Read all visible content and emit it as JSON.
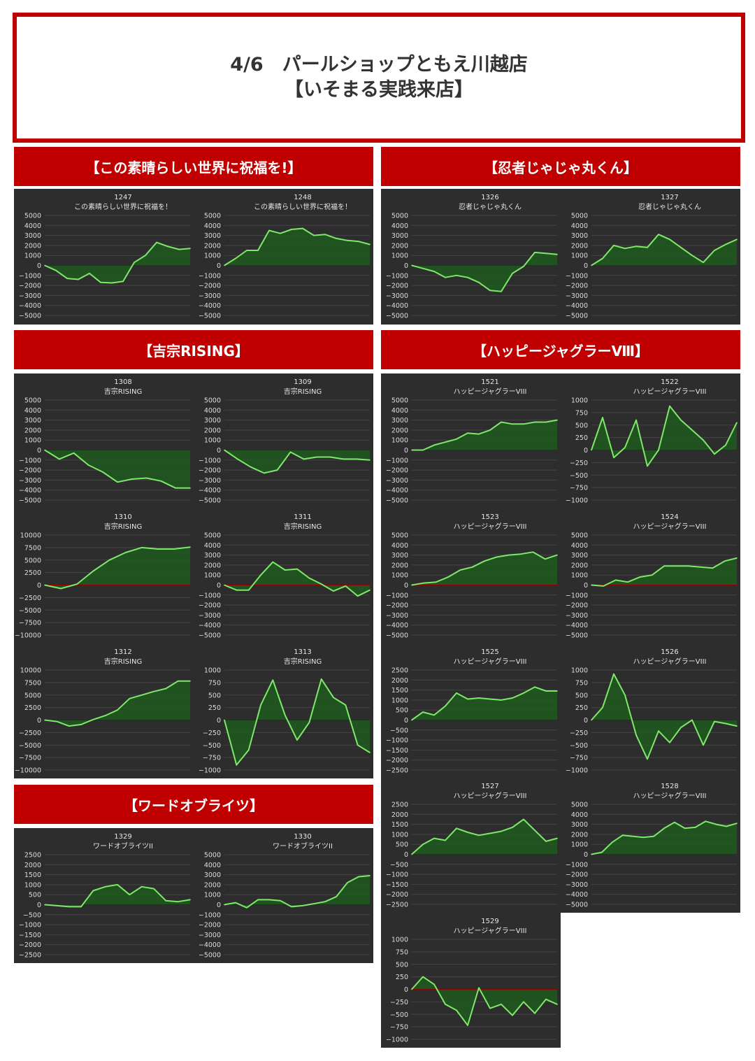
{
  "header": {
    "line1": "4/6　パールショップともえ川越店",
    "line2": "【いそまる実践来店】"
  },
  "banners": [
    {
      "id": "konosuba",
      "label": "【この素晴らしい世界に祝福を!】"
    },
    {
      "id": "ninja",
      "label": "【忍者じゃじゃ丸くん】"
    },
    {
      "id": "yoshimune",
      "label": "【吉宗RISING】"
    },
    {
      "id": "happy",
      "label": "【ハッピージャグラーⅧ】"
    },
    {
      "id": "word",
      "label": "【ワードオブライツ】"
    }
  ],
  "colors": {
    "accent": "#c00000",
    "panel": "#2d2d2d",
    "line": "#7ee86a",
    "fill": "#1f5a1f",
    "zero": "#8b0000"
  },
  "chart_data": [
    {
      "type": "area",
      "number": "1247",
      "title": "この素晴らしい世界に祝福を！",
      "ylim": [
        -5000,
        5000
      ],
      "yticks": [
        5000,
        4000,
        3000,
        2000,
        1000,
        0,
        -1000,
        -2000,
        -3000,
        -4000,
        -5000
      ],
      "y": [
        0,
        -500,
        -1300,
        -1400,
        -800,
        -1700,
        -1750,
        -1600,
        300,
        1000,
        2300,
        1900,
        1600,
        1700
      ]
    },
    {
      "type": "area",
      "number": "1248",
      "title": "この素晴らしい世界に祝福を！",
      "ylim": [
        -5000,
        5000
      ],
      "yticks": [
        5000,
        4000,
        3000,
        2000,
        1000,
        0,
        -1000,
        -2000,
        -3000,
        -4000,
        -5000
      ],
      "y": [
        0,
        700,
        1500,
        1500,
        3500,
        3200,
        3600,
        3700,
        3000,
        3100,
        2700,
        2500,
        2400,
        2100
      ]
    },
    {
      "type": "area",
      "number": "1326",
      "title": "忍者じゃじゃ丸くん",
      "ylim": [
        -5000,
        5000
      ],
      "yticks": [
        5000,
        4000,
        3000,
        2000,
        1000,
        0,
        -1000,
        -2000,
        -3000,
        -4000,
        -5000
      ],
      "y": [
        0,
        -300,
        -600,
        -1200,
        -1000,
        -1200,
        -1700,
        -2500,
        -2600,
        -800,
        -100,
        1300,
        1200,
        1100
      ]
    },
    {
      "type": "area",
      "number": "1327",
      "title": "忍者じゃじゃ丸くん",
      "ylim": [
        -5000,
        5000
      ],
      "yticks": [
        5000,
        4000,
        3000,
        2000,
        1000,
        0,
        -1000,
        -2000,
        -3000,
        -4000,
        -5000
      ],
      "y": [
        0,
        700,
        2000,
        1700,
        1900,
        1800,
        3100,
        2600,
        1800,
        1000,
        300,
        1500,
        2100,
        2600
      ]
    },
    {
      "type": "area",
      "number": "1308",
      "title": "吉宗RISING",
      "ylim": [
        -5000,
        5000
      ],
      "yticks": [
        5000,
        4000,
        3000,
        2000,
        1000,
        0,
        -1000,
        -2000,
        -3000,
        -4000,
        -5000
      ],
      "y": [
        0,
        -900,
        -300,
        -1500,
        -2200,
        -3200,
        -2900,
        -2800,
        -3100,
        -3800,
        -3800
      ]
    },
    {
      "type": "area",
      "number": "1309",
      "title": "吉宗RISING",
      "ylim": [
        -5000,
        5000
      ],
      "yticks": [
        5000,
        4000,
        3000,
        2000,
        1000,
        0,
        -1000,
        -2000,
        -3000,
        -4000,
        -5000
      ],
      "y": [
        0,
        -900,
        -1700,
        -2300,
        -2000,
        -200,
        -900,
        -700,
        -700,
        -900,
        -900,
        -1000
      ]
    },
    {
      "type": "area",
      "number": "1310",
      "title": "吉宗RISING",
      "ylim": [
        -10000,
        10000
      ],
      "yticks": [
        10000,
        7500,
        5000,
        2500,
        0,
        -2500,
        -5000,
        -7500,
        -10000
      ],
      "y": [
        0,
        -700,
        200,
        2800,
        5000,
        6500,
        7500,
        7200,
        7200,
        7600
      ]
    },
    {
      "type": "area",
      "number": "1311",
      "title": "吉宗RISING",
      "ylim": [
        -5000,
        5000
      ],
      "yticks": [
        5000,
        4000,
        3000,
        2000,
        1000,
        0,
        -1000,
        -2000,
        -3000,
        -4000,
        -5000
      ],
      "y": [
        0,
        -500,
        -500,
        1000,
        2300,
        1500,
        1600,
        700,
        100,
        -600,
        -100,
        -1100,
        -500
      ]
    },
    {
      "type": "area",
      "number": "1312",
      "title": "吉宗RISING",
      "ylim": [
        -10000,
        10000
      ],
      "yticks": [
        10000,
        7500,
        5000,
        2500,
        0,
        -2500,
        -5000,
        -7500,
        -10000
      ],
      "y": [
        0,
        -300,
        -1200,
        -900,
        100,
        900,
        2000,
        4300,
        5000,
        5700,
        6300,
        7800,
        7800
      ]
    },
    {
      "type": "area",
      "number": "1313",
      "title": "吉宗RISING",
      "ylim": [
        -1000,
        1000
      ],
      "yticks": [
        1000,
        750,
        500,
        250,
        0,
        -250,
        -500,
        -750,
        -1000
      ],
      "y": [
        0,
        -900,
        -600,
        300,
        800,
        100,
        -400,
        -50,
        820,
        450,
        300,
        -500,
        -650
      ]
    },
    {
      "type": "area",
      "number": "1329",
      "title": "ワードオブライツII",
      "ylim": [
        -2500,
        2500
      ],
      "yticks": [
        2500,
        2000,
        1500,
        1000,
        500,
        0,
        -500,
        -1000,
        -1500,
        -2000,
        -2500
      ],
      "y": [
        0,
        -50,
        -100,
        -100,
        700,
        900,
        1000,
        500,
        900,
        800,
        200,
        150,
        250
      ]
    },
    {
      "type": "area",
      "number": "1330",
      "title": "ワードオブライツII",
      "ylim": [
        -5000,
        5000
      ],
      "yticks": [
        5000,
        4000,
        3000,
        2000,
        1000,
        0,
        -1000,
        -2000,
        -3000,
        -4000,
        -5000
      ],
      "y": [
        0,
        200,
        -300,
        500,
        500,
        400,
        -200,
        -100,
        100,
        300,
        800,
        2200,
        2800,
        2900
      ]
    },
    {
      "type": "area",
      "number": "1521",
      "title": "ハッピージャグラーVIII",
      "ylim": [
        -5000,
        5000
      ],
      "yticks": [
        5000,
        4000,
        3000,
        2000,
        1000,
        0,
        -1000,
        -2000,
        -3000,
        -4000,
        -5000
      ],
      "y": [
        0,
        0,
        500,
        800,
        1100,
        1700,
        1600,
        2000,
        2800,
        2600,
        2600,
        2800,
        2800,
        3000
      ]
    },
    {
      "type": "area",
      "number": "1522",
      "title": "ハッピージャグラーVIII",
      "ylim": [
        -1000,
        1000
      ],
      "yticks": [
        1000,
        750,
        500,
        250,
        0,
        -250,
        -500,
        -750,
        -1000
      ],
      "y": [
        0,
        650,
        -150,
        50,
        600,
        -320,
        0,
        880,
        600,
        400,
        200,
        -80,
        100,
        550
      ]
    },
    {
      "type": "area",
      "number": "1523",
      "title": "ハッピージャグラーVIII",
      "ylim": [
        -5000,
        5000
      ],
      "yticks": [
        5000,
        4000,
        3000,
        2000,
        1000,
        0,
        -1000,
        -2000,
        -3000,
        -4000,
        -5000
      ],
      "y": [
        0,
        200,
        300,
        800,
        1500,
        1800,
        2400,
        2800,
        3000,
        3100,
        3300,
        2600,
        3000
      ]
    },
    {
      "type": "area",
      "number": "1524",
      "title": "ハッピージャグラーVIII",
      "ylim": [
        -5000,
        5000
      ],
      "yticks": [
        5000,
        4000,
        3000,
        2000,
        1000,
        0,
        -1000,
        -2000,
        -3000,
        -4000,
        -5000
      ],
      "y": [
        0,
        -100,
        500,
        300,
        800,
        1000,
        1900,
        1900,
        1900,
        1800,
        1700,
        2400,
        2700
      ]
    },
    {
      "type": "area",
      "number": "1525",
      "title": "ハッピージャグラーVIII",
      "ylim": [
        -2500,
        2500
      ],
      "yticks": [
        2500,
        2000,
        1500,
        1000,
        500,
        0,
        -500,
        -1000,
        -1500,
        -2000,
        -2500
      ],
      "y": [
        0,
        400,
        250,
        700,
        1350,
        1050,
        1100,
        1050,
        1000,
        1100,
        1350,
        1650,
        1450,
        1450
      ]
    },
    {
      "type": "area",
      "number": "1526",
      "title": "ハッピージャグラーVIII",
      "ylim": [
        -1000,
        1000
      ],
      "yticks": [
        1000,
        750,
        500,
        250,
        0,
        -250,
        -500,
        -750,
        -1000
      ],
      "y": [
        0,
        250,
        920,
        500,
        -300,
        -780,
        -220,
        -450,
        -150,
        0,
        -500,
        -30,
        -70,
        -120
      ]
    },
    {
      "type": "area",
      "number": "1527",
      "title": "ハッピージャグラーVIII",
      "ylim": [
        -2500,
        2500
      ],
      "yticks": [
        2500,
        2000,
        1500,
        1000,
        500,
        0,
        -500,
        -1000,
        -1500,
        -2000,
        -2500
      ],
      "y": [
        0,
        500,
        800,
        700,
        1300,
        1100,
        950,
        1050,
        1150,
        1350,
        1750,
        1200,
        650,
        800
      ]
    },
    {
      "type": "area",
      "number": "1528",
      "title": "ハッピージャグラーVIII",
      "ylim": [
        -5000,
        5000
      ],
      "yticks": [
        5000,
        4000,
        3000,
        2000,
        1000,
        0,
        -1000,
        -2000,
        -3000,
        -4000,
        -5000
      ],
      "y": [
        0,
        200,
        1200,
        1900,
        1800,
        1700,
        1800,
        2600,
        3200,
        2600,
        2700,
        3300,
        3000,
        2800,
        3100
      ]
    },
    {
      "type": "area",
      "number": "1529",
      "title": "ハッピージャグラーVIII",
      "ylim": [
        -1000,
        1000
      ],
      "yticks": [
        1000,
        750,
        500,
        250,
        0,
        -250,
        -500,
        -750,
        -1000
      ],
      "y": [
        0,
        250,
        100,
        -300,
        -420,
        -720,
        30,
        -380,
        -300,
        -520,
        -250,
        -480,
        -200,
        -300
      ]
    }
  ]
}
